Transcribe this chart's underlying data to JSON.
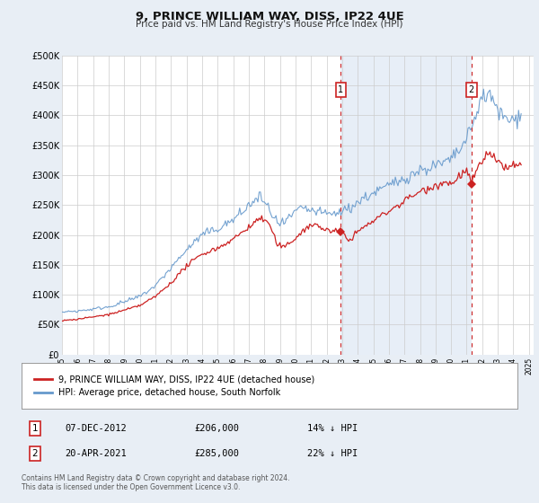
{
  "title": "9, PRINCE WILLIAM WAY, DISS, IP22 4UE",
  "subtitle": "Price paid vs. HM Land Registry's House Price Index (HPI)",
  "fig_bg_color": "#e8eef5",
  "plot_bg_color": "#ffffff",
  "grid_color": "#cccccc",
  "shade_color": "#dde8f5",
  "ylim": [
    0,
    500000
  ],
  "yticks": [
    0,
    50000,
    100000,
    150000,
    200000,
    250000,
    300000,
    350000,
    400000,
    450000,
    500000
  ],
  "ytick_labels": [
    "£0",
    "£50K",
    "£100K",
    "£150K",
    "£200K",
    "£250K",
    "£300K",
    "£350K",
    "£400K",
    "£450K",
    "£500K"
  ],
  "xlim_start": 1995.0,
  "xlim_end": 2025.3,
  "xticks": [
    1995,
    1996,
    1997,
    1998,
    1999,
    2000,
    2001,
    2002,
    2003,
    2004,
    2005,
    2006,
    2007,
    2008,
    2009,
    2010,
    2011,
    2012,
    2013,
    2014,
    2015,
    2016,
    2017,
    2018,
    2019,
    2020,
    2021,
    2022,
    2023,
    2024,
    2025
  ],
  "hpi_color": "#6699cc",
  "price_color": "#cc2222",
  "marker1_date": 2012.92,
  "marker1_value": 206000,
  "marker2_date": 2021.3,
  "marker2_value": 285000,
  "vline_color": "#cc2222",
  "box_color": "#cc2222",
  "legend_label_price": "9, PRINCE WILLIAM WAY, DISS, IP22 4UE (detached house)",
  "legend_label_hpi": "HPI: Average price, detached house, South Norfolk",
  "annotation1_date": "07-DEC-2012",
  "annotation1_price": "£206,000",
  "annotation1_hpi": "14% ↓ HPI",
  "annotation2_date": "20-APR-2021",
  "annotation2_price": "£285,000",
  "annotation2_hpi": "22% ↓ HPI",
  "footnote": "Contains HM Land Registry data © Crown copyright and database right 2024.\nThis data is licensed under the Open Government Licence v3.0."
}
